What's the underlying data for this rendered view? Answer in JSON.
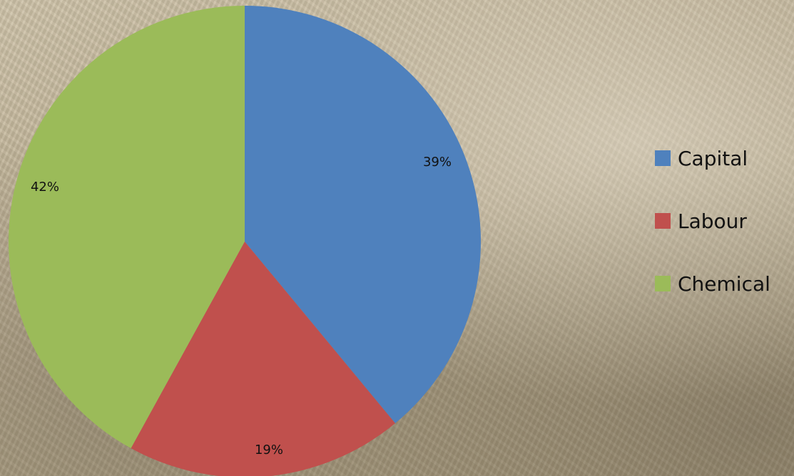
{
  "chart_data": {
    "type": "pie",
    "categories": [
      "Capital",
      "Labour",
      "Chemical"
    ],
    "values": [
      39,
      19,
      42
    ],
    "data_labels": [
      "39%",
      "19%",
      "42%"
    ],
    "colors": [
      "#4f81bd",
      "#c0504d",
      "#9bbb59"
    ],
    "start_angle": "12 o'clock",
    "direction": "clockwise",
    "legend_position": "right"
  }
}
